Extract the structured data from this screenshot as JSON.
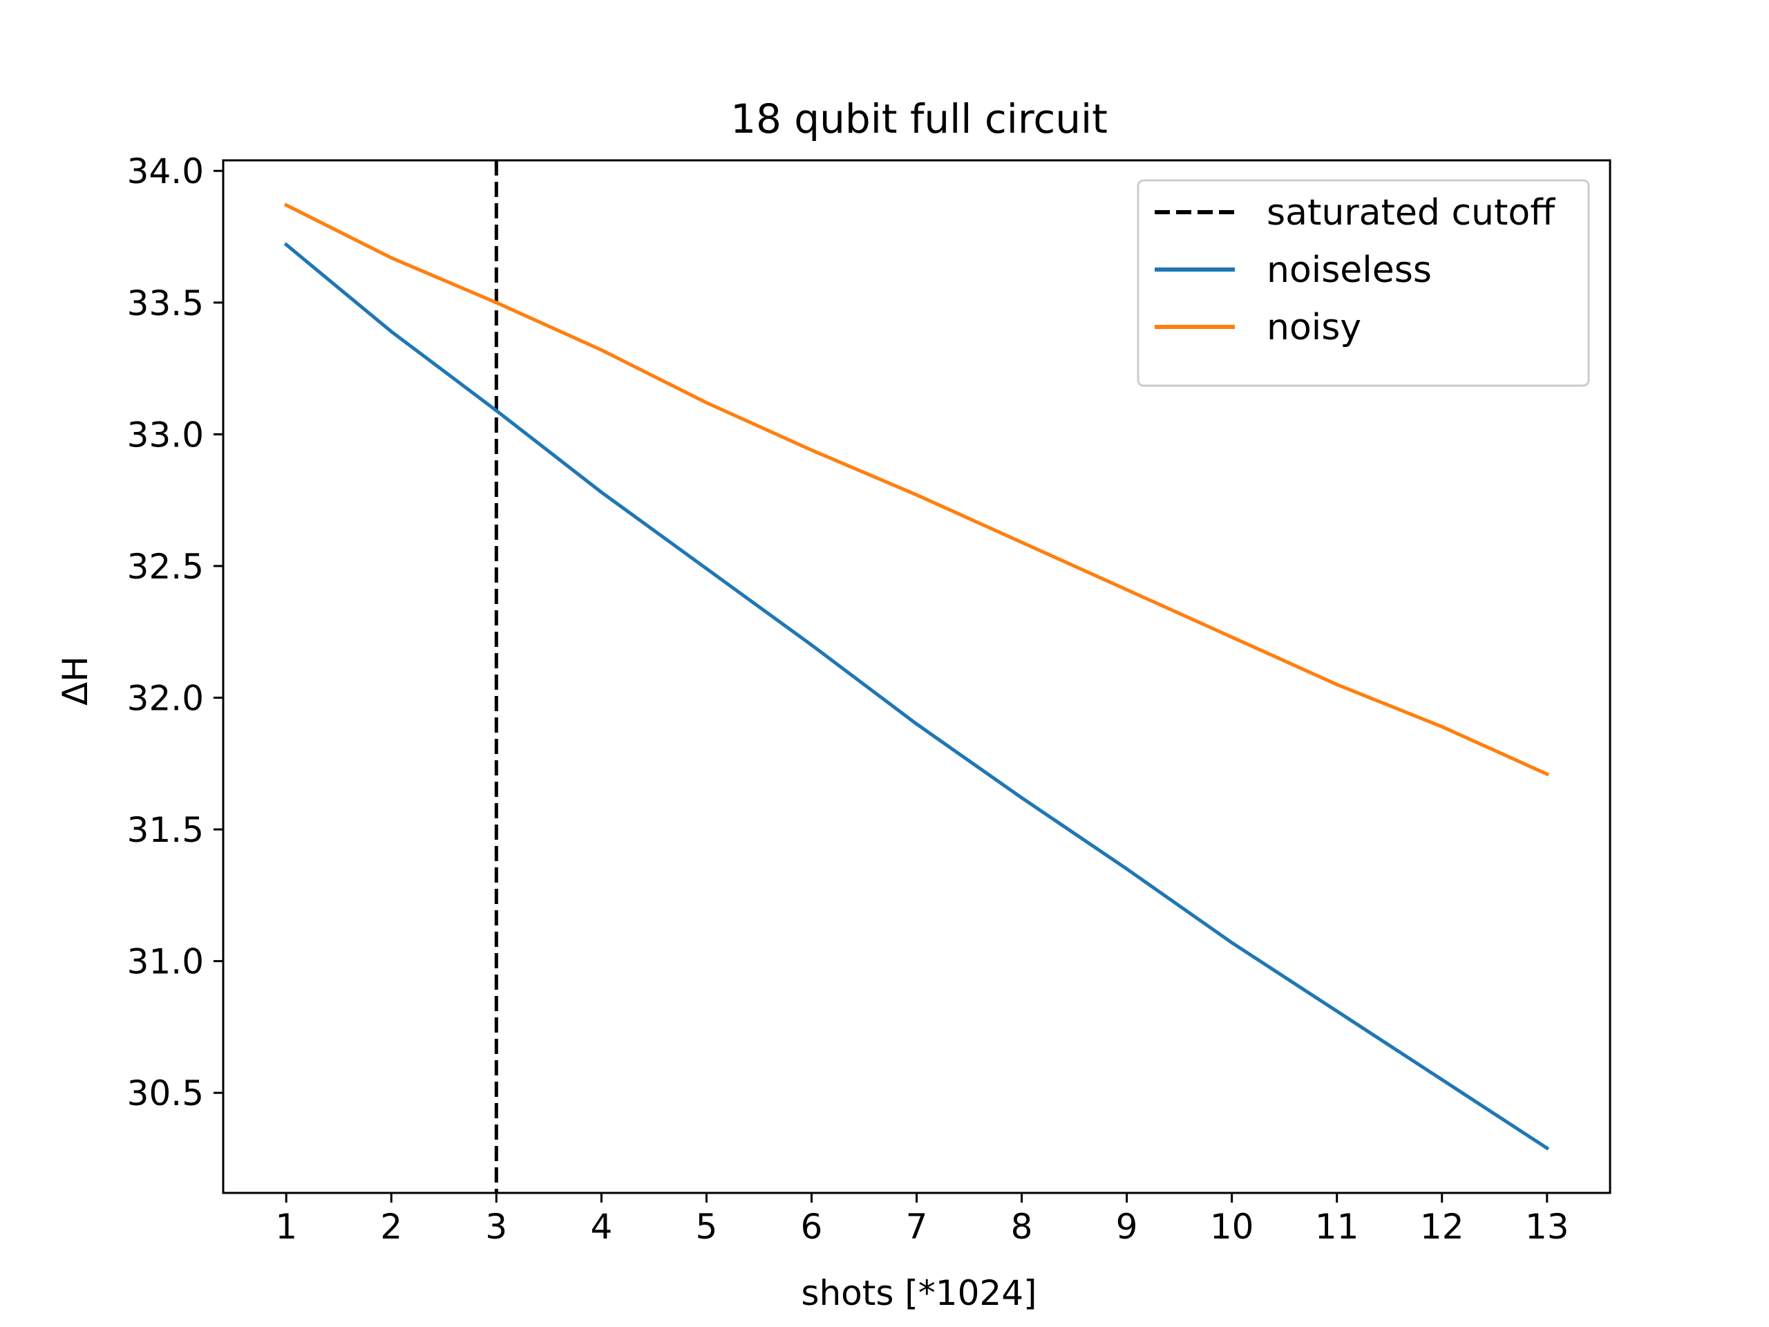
{
  "chart_data": {
    "type": "line",
    "title": "18 qubit full circuit",
    "xlabel": "shots [*1024]",
    "ylabel": "ΔH",
    "xlim": [
      0.4,
      13.6
    ],
    "ylim": [
      30.12,
      34.04
    ],
    "xticks": [
      1,
      2,
      3,
      4,
      5,
      6,
      7,
      8,
      9,
      10,
      11,
      12,
      13
    ],
    "yticks": [
      30.5,
      31.0,
      31.5,
      32.0,
      32.5,
      33.0,
      33.5,
      34.0
    ],
    "grid": false,
    "legend_position": "top-right",
    "x": [
      1,
      2,
      3,
      4,
      5,
      6,
      7,
      8,
      9,
      10,
      11,
      12,
      13
    ],
    "series": [
      {
        "name": "noiseless",
        "color": "#1f77b4",
        "style": "solid",
        "values": [
          33.72,
          33.39,
          33.09,
          32.78,
          32.49,
          32.2,
          31.9,
          31.62,
          31.35,
          31.07,
          30.81,
          30.55,
          30.29
        ]
      },
      {
        "name": "noisy",
        "color": "#ff7f0e",
        "style": "solid",
        "values": [
          33.87,
          33.67,
          33.5,
          33.32,
          33.12,
          32.94,
          32.77,
          32.59,
          32.41,
          32.23,
          32.05,
          31.89,
          31.71
        ]
      }
    ],
    "vlines": [
      {
        "name": "saturated cutoff",
        "x": 3,
        "color": "#000000",
        "style": "dashed"
      }
    ]
  }
}
